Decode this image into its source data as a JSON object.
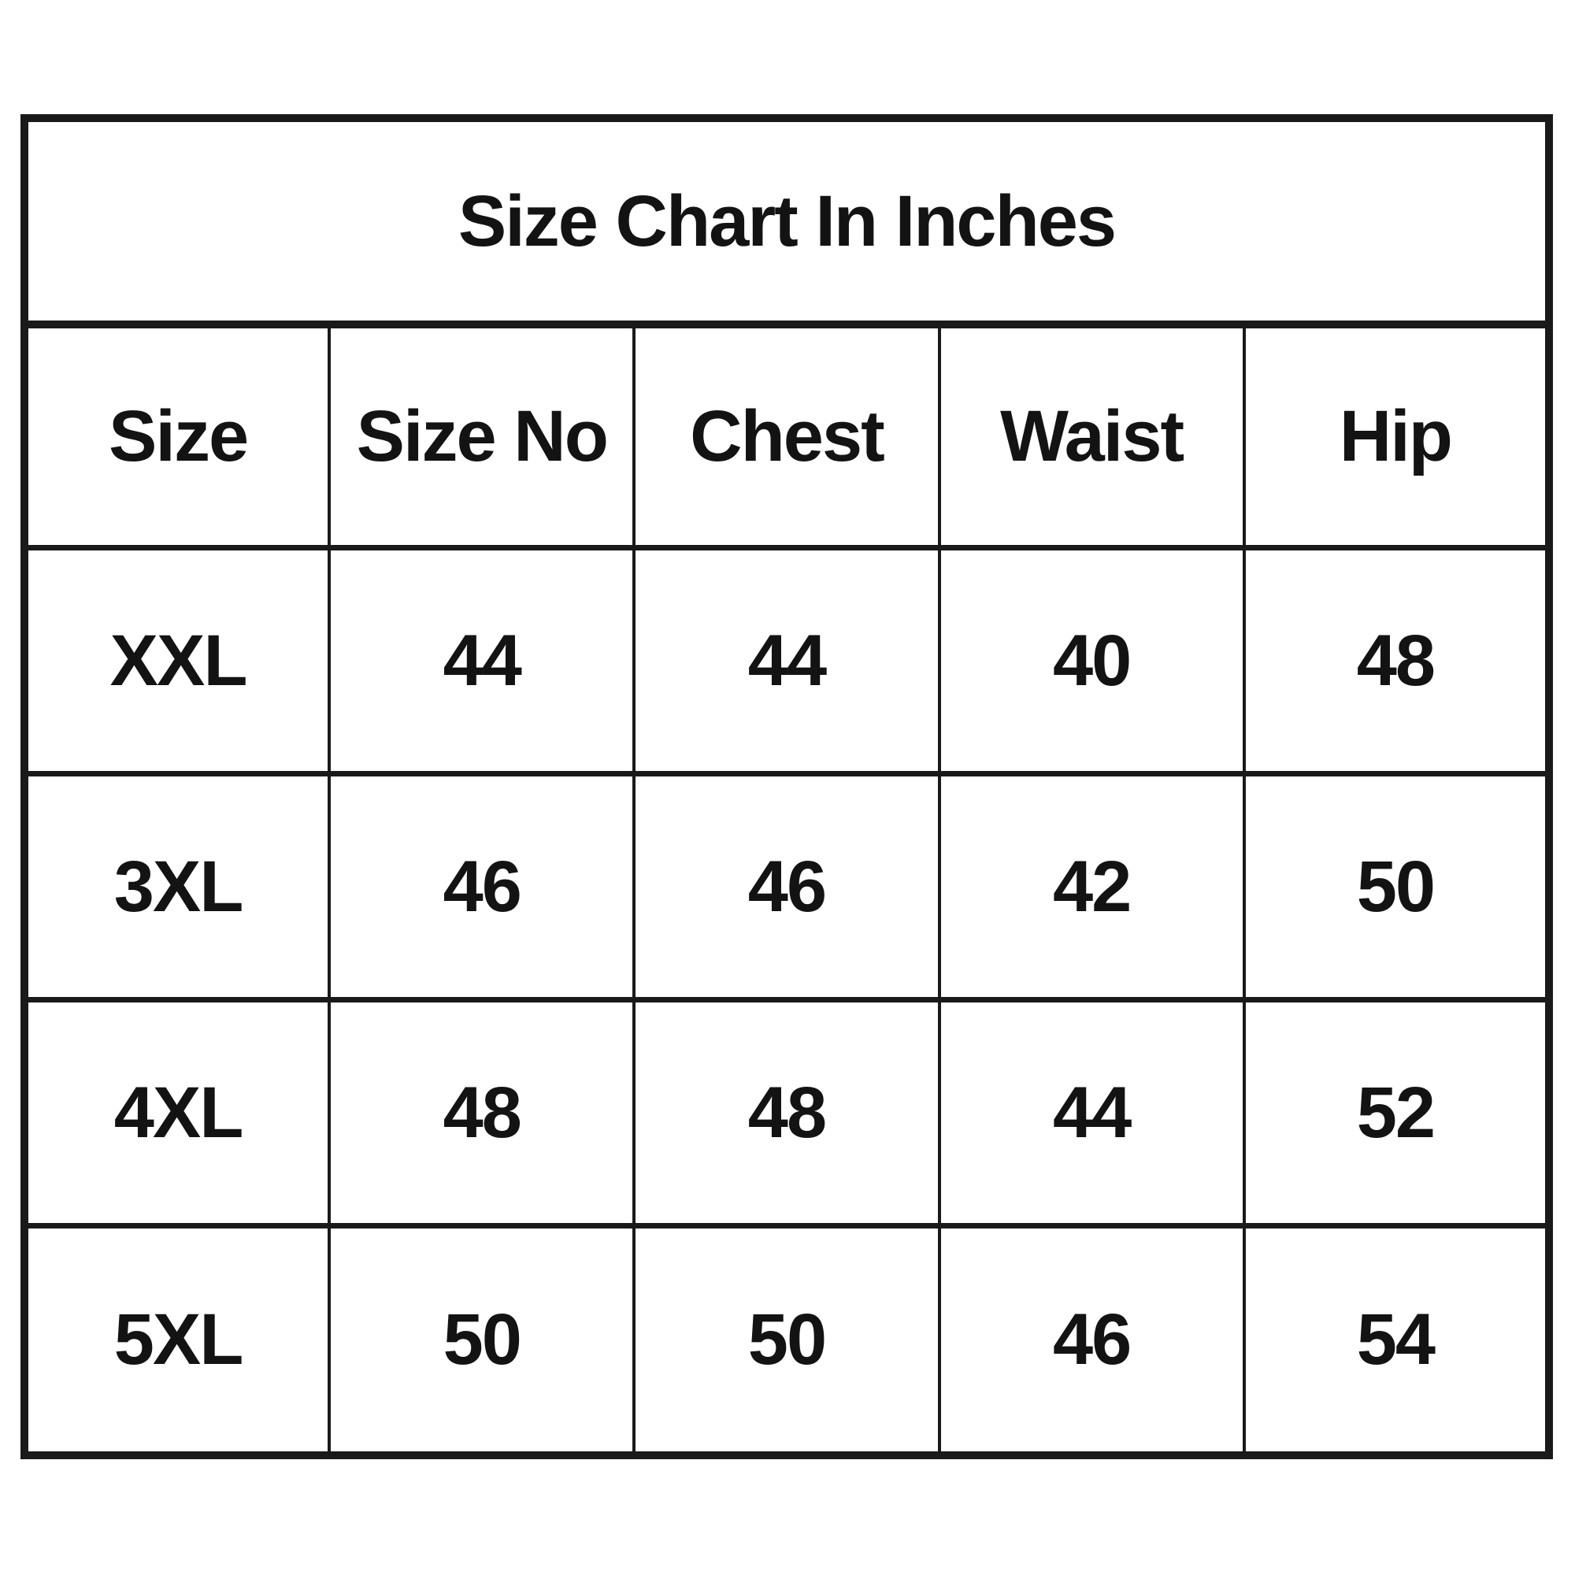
{
  "table": {
    "title": "Size Chart In Inches",
    "columns": [
      "Size",
      "Size No",
      "Chest",
      "Waist",
      "Hip"
    ],
    "rows": [
      [
        "XXL",
        "44",
        "44",
        "40",
        "48"
      ],
      [
        "3XL",
        "46",
        "46",
        "42",
        "50"
      ],
      [
        "4XL",
        "48",
        "48",
        "44",
        "52"
      ],
      [
        "5XL",
        "50",
        "50",
        "46",
        "54"
      ]
    ]
  },
  "chart_data": {
    "type": "table",
    "title": "Size Chart In Inches",
    "units": "inches",
    "columns": [
      "Size",
      "Size No",
      "Chest",
      "Waist",
      "Hip"
    ],
    "rows": [
      [
        "XXL",
        44,
        44,
        40,
        48
      ],
      [
        "3XL",
        46,
        46,
        42,
        50
      ],
      [
        "4XL",
        48,
        48,
        44,
        52
      ],
      [
        "5XL",
        50,
        50,
        46,
        54
      ]
    ]
  },
  "colors": {
    "background": "#ffffff",
    "border": "#1a1a1a",
    "text": "#131313"
  }
}
